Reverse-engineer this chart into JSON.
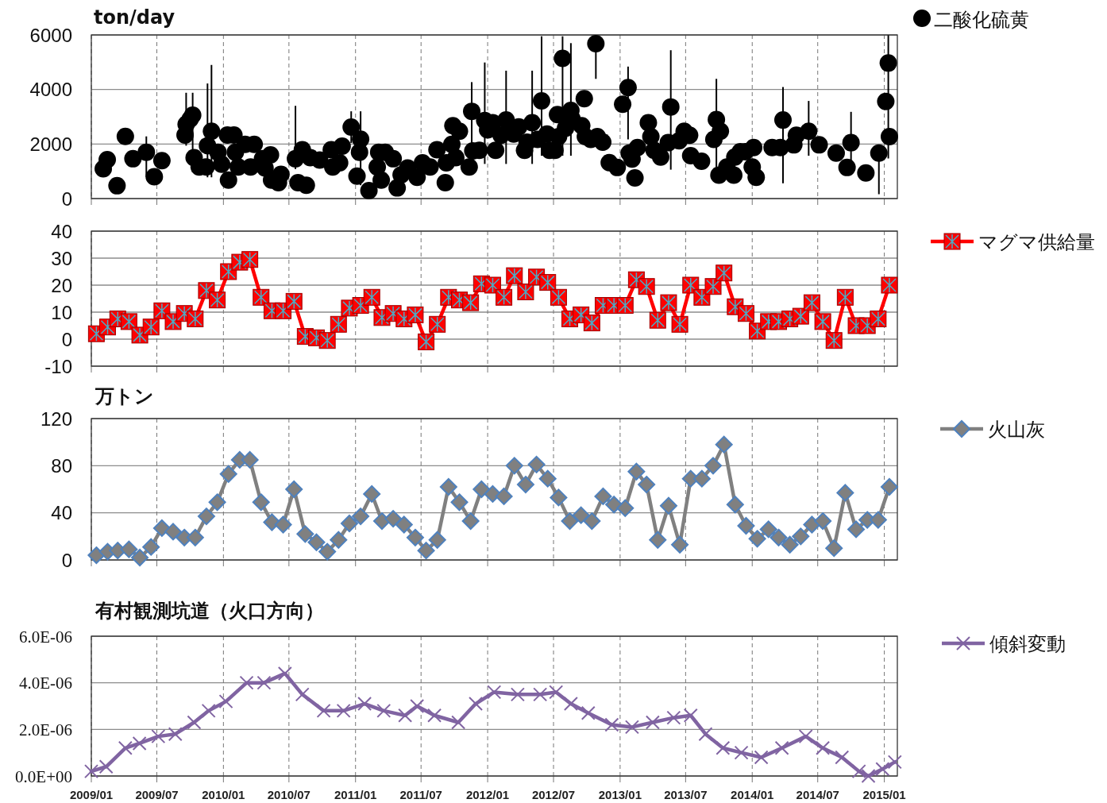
{
  "chart_data": [
    {
      "type": "scatter",
      "ylabel": "ton/day",
      "xlim": [
        "2009-01-01",
        "2015-02-06"
      ],
      "xticks": [
        {
          "value": "2009-01",
          "label": null
        },
        {
          "value": "2009-07",
          "label": null
        },
        {
          "value": "2010-01",
          "label": null
        },
        {
          "value": "2010-07",
          "label": null
        },
        {
          "value": "2011-01",
          "label": null
        },
        {
          "value": "2011-07",
          "label": null
        },
        {
          "value": "2012-01",
          "label": null
        },
        {
          "value": "2012-07",
          "label": null
        },
        {
          "value": "2013-01",
          "label": null
        },
        {
          "value": "2013-07",
          "label": null
        },
        {
          "value": "2014-01",
          "label": null
        },
        {
          "value": "2014-07",
          "label": null
        },
        {
          "value": "2015-01",
          "label": null
        }
      ],
      "ylim": [
        0,
        6000
      ],
      "yticks": [
        0,
        2000,
        4000,
        6000
      ],
      "grid": true,
      "legend": "right",
      "tick_labels": "y",
      "marker": "circle",
      "x": [
        "2009-02-03",
        "2009-02-14",
        "2009-03-13",
        "2009-04-05",
        "2009-04-26",
        "2009-06-02",
        "2009-06-24",
        "2009-07-15",
        "2009-09-17",
        "2009-09-20",
        "2009-10-01",
        "2009-10-08",
        "2009-10-12",
        "2009-10-26",
        "2009-11-14",
        "2009-11-18",
        "2009-11-29",
        "2009-12-17",
        "2009-12-27",
        "2010-01-12",
        "2010-01-15",
        "2010-01-30",
        "2010-02-03",
        "2010-02-11",
        "2010-03-02",
        "2010-03-17",
        "2010-03-27",
        "2010-04-19",
        "2010-04-26",
        "2010-05-11",
        "2010-05-14",
        "2010-06-02",
        "2010-06-09",
        "2010-07-19",
        "2010-07-26",
        "2010-08-07",
        "2010-08-18",
        "2010-08-29",
        "2010-09-24",
        "2010-10-26",
        "2010-10-30",
        "2010-11-18",
        "2010-11-25",
        "2010-12-20",
        "2011-01-05",
        "2011-01-12",
        "2011-01-15",
        "2011-02-07",
        "2011-03-02",
        "2011-03-06",
        "2011-03-13",
        "2011-03-24",
        "2011-04-15",
        "2011-04-26",
        "2011-05-07",
        "2011-05-25",
        "2011-06-20",
        "2011-07-05",
        "2011-07-26",
        "2011-08-14",
        "2011-09-06",
        "2011-09-09",
        "2011-09-24",
        "2011-09-27",
        "2011-10-05",
        "2011-10-15",
        "2011-11-11",
        "2011-11-18",
        "2011-11-21",
        "2011-12-09",
        "2011-12-24",
        "2012-01-01",
        "2012-01-15",
        "2012-01-23",
        "2012-02-07",
        "2012-02-21",
        "2012-03-13",
        "2012-03-27",
        "2012-04-12",
        "2012-04-19",
        "2012-05-03",
        "2012-05-18",
        "2012-05-29",
        "2012-06-13",
        "2012-06-20",
        "2012-07-05",
        "2012-07-12",
        "2012-07-15",
        "2012-07-26",
        "2012-08-03",
        "2012-08-18",
        "2012-08-21",
        "2012-09-17",
        "2012-09-24",
        "2012-09-27",
        "2012-10-12",
        "2012-10-26",
        "2012-10-30",
        "2012-11-14",
        "2012-12-02",
        "2012-12-24",
        "2013-01-08",
        "2013-01-23",
        "2013-01-26",
        "2013-02-03",
        "2013-02-11",
        "2013-02-18",
        "2013-03-20",
        "2013-03-27",
        "2013-04-05",
        "2013-04-23",
        "2013-05-14",
        "2013-05-21",
        "2013-06-13",
        "2013-06-27",
        "2013-07-12",
        "2013-07-15",
        "2013-08-14",
        "2013-09-17",
        "2013-09-24",
        "2013-10-01",
        "2013-10-05",
        "2013-10-23",
        "2013-11-11",
        "2013-11-14",
        "2013-11-29",
        "2013-12-13",
        "2014-01-01",
        "2014-01-05",
        "2014-01-12",
        "2014-02-25",
        "2014-03-20",
        "2014-03-27",
        "2014-04-26",
        "2014-05-03",
        "2014-06-06",
        "2014-07-05",
        "2014-08-21",
        "2014-09-20",
        "2014-10-01",
        "2014-11-11",
        "2014-12-17",
        "2015-01-05",
        "2015-01-12",
        "2015-01-15"
      ],
      "series": [
        {
          "name": "二酸化硫黄",
          "color": "#000000",
          "values": [
            1090,
            1430,
            470,
            2280,
            1460,
            1700,
            800,
            1390,
            2330,
            2720,
            2910,
            3060,
            1500,
            1160,
            1160,
            1940,
            2470,
            1700,
            1260,
            2330,
            680,
            2330,
            1700,
            1160,
            1990,
            1160,
            1990,
            1460,
            1120,
            1600,
            680,
            580,
            890,
            1460,
            580,
            1790,
            490,
            1500,
            1410,
            1790,
            1160,
            1310,
            1920,
            2620,
            820,
            1700,
            2180,
            290,
            1160,
            1700,
            680,
            1700,
            1460,
            390,
            870,
            1120,
            780,
            1310,
            1160,
            1790,
            580,
            1310,
            1990,
            2670,
            1500,
            2470,
            1160,
            3200,
            1750,
            1770,
            2860,
            2520,
            2780,
            1770,
            2320,
            2880,
            2370,
            2630,
            1770,
            2070,
            2780,
            2170,
            3580,
            2370,
            1770,
            1770,
            3080,
            2270,
            5140,
            2580,
            3230,
            2930,
            2670,
            3660,
            2270,
            2170,
            5680,
            2270,
            2070,
            1320,
            1140,
            3460,
            4070,
            1670,
            1450,
            760,
            1870,
            2780,
            2270,
            1770,
            1520,
            2050,
            3360,
            2120,
            2470,
            2320,
            1570,
            1370,
            2170,
            2900,
            860,
            2470,
            1160,
            860,
            1520,
            1720,
            1720,
            1160,
            1870,
            780,
            1870,
            1870,
            2880,
            1970,
            2320,
            2470,
            1970,
            1670,
            1140,
            2050,
            940,
            1670,
            3560,
            4970,
            2270
          ],
          "errors": [
            null,
            null,
            null,
            null,
            null,
            [
              790,
              2280
            ],
            null,
            null,
            null,
            [
              1940,
              3880
            ],
            null,
            [
              970,
              3880
            ],
            null,
            null,
            null,
            [
              780,
              4220
            ],
            [
              780,
              4900
            ],
            null,
            null,
            null,
            null,
            null,
            null,
            null,
            null,
            null,
            null,
            null,
            null,
            null,
            null,
            null,
            null,
            [
              1080,
              3400
            ],
            null,
            null,
            null,
            null,
            null,
            null,
            null,
            null,
            null,
            [
              2040,
              3200
            ],
            null,
            null,
            [
              490,
              3200
            ],
            null,
            null,
            null,
            null,
            null,
            null,
            null,
            null,
            null,
            null,
            null,
            null,
            null,
            null,
            null,
            null,
            null,
            null,
            null,
            null,
            [
              970,
              4270
            ],
            null,
            null,
            [
              1270,
              4990
            ],
            null,
            null,
            null,
            null,
            [
              1270,
              4690
            ],
            null,
            null,
            null,
            null,
            [
              1270,
              4690
            ],
            null,
            [
              1570,
              5950
            ],
            null,
            null,
            null,
            null,
            null,
            [
              1570,
              5950
            ],
            null,
            [
              1570,
              5700
            ],
            null,
            null,
            null,
            null,
            null,
            [
              4390,
              5680
            ],
            null,
            null,
            null,
            null,
            null,
            [
              2170,
              4840
            ],
            null,
            null,
            null,
            null,
            null,
            null,
            null,
            null,
            null,
            [
              1060,
              5440
            ],
            null,
            null,
            null,
            null,
            null,
            null,
            [
              1160,
              4390
            ],
            null,
            null,
            null,
            null,
            null,
            null,
            null,
            null,
            null,
            null,
            null,
            null,
            [
              560,
              4090
            ],
            null,
            null,
            [
              1570,
              3580
            ],
            null,
            null,
            null,
            [
              1370,
              3180
            ],
            null,
            [
              160,
              1670
            ],
            null,
            [
              1470,
              5990
            ],
            null
          ]
        }
      ]
    },
    {
      "type": "line",
      "xlim": [
        "2009-01-01",
        "2015-02-06"
      ],
      "xticks": [
        {
          "value": "2009-01",
          "label": null
        },
        {
          "value": "2009-07",
          "label": null
        },
        {
          "value": "2010-01",
          "label": null
        },
        {
          "value": "2010-07",
          "label": null
        },
        {
          "value": "2011-01",
          "label": null
        },
        {
          "value": "2011-07",
          "label": null
        },
        {
          "value": "2012-01",
          "label": null
        },
        {
          "value": "2012-07",
          "label": null
        },
        {
          "value": "2013-01",
          "label": null
        },
        {
          "value": "2013-07",
          "label": null
        },
        {
          "value": "2014-01",
          "label": null
        },
        {
          "value": "2014-07",
          "label": null
        },
        {
          "value": "2015-01",
          "label": null
        }
      ],
      "ylim": [
        -10,
        40
      ],
      "yticks": [
        -10,
        0,
        10,
        20,
        30,
        40
      ],
      "grid": true,
      "legend": "right",
      "tick_labels": "y",
      "marker": "square",
      "x": [
        "2009-01-15",
        "2009-02-15",
        "2009-03-15",
        "2009-04-15",
        "2009-05-15",
        "2009-06-15",
        "2009-07-15",
        "2009-08-15",
        "2009-09-15",
        "2009-10-15",
        "2009-11-15",
        "2009-12-15",
        "2010-01-15",
        "2010-02-15",
        "2010-03-15",
        "2010-04-15",
        "2010-05-15",
        "2010-06-15",
        "2010-07-15",
        "2010-08-15",
        "2010-09-15",
        "2010-10-15",
        "2010-11-15",
        "2010-12-15",
        "2011-01-15",
        "2011-02-15",
        "2011-03-15",
        "2011-04-15",
        "2011-05-15",
        "2011-06-15",
        "2011-07-15",
        "2011-08-15",
        "2011-09-15",
        "2011-10-15",
        "2011-11-15",
        "2011-12-15",
        "2012-01-15",
        "2012-02-15",
        "2012-03-15",
        "2012-04-15",
        "2012-05-15",
        "2012-06-15",
        "2012-07-15",
        "2012-08-15",
        "2012-09-15",
        "2012-10-15",
        "2012-11-15",
        "2012-12-15",
        "2013-01-15",
        "2013-02-15",
        "2013-03-15",
        "2013-04-15",
        "2013-05-15",
        "2013-06-15",
        "2013-07-15",
        "2013-08-15",
        "2013-09-15",
        "2013-10-15",
        "2013-11-15",
        "2013-12-15",
        "2014-01-15",
        "2014-02-15",
        "2014-03-15",
        "2014-04-15",
        "2014-05-15",
        "2014-06-15",
        "2014-07-15",
        "2014-08-15",
        "2014-09-15",
        "2014-10-15",
        "2014-11-15",
        "2014-12-15",
        "2015-01-15"
      ],
      "series": [
        {
          "name": "マグマ供給量",
          "color": "#ff0000",
          "values": [
            2,
            4.5,
            7.5,
            6.5,
            1.5,
            4.5,
            10.5,
            6.5,
            9.5,
            7.5,
            18,
            14.5,
            25,
            28.5,
            29.5,
            15.5,
            10.5,
            10.5,
            14,
            1,
            0.5,
            -0.5,
            5.5,
            11.5,
            12.5,
            15.5,
            8,
            9.5,
            7.5,
            9,
            -1,
            5.5,
            15.5,
            14.5,
            13.5,
            20.5,
            20,
            15.5,
            23.5,
            17.5,
            23,
            21,
            15.5,
            7.5,
            9,
            6,
            12.5,
            12.5,
            12.5,
            22,
            19.5,
            7,
            13.5,
            5.5,
            20,
            15.5,
            19.5,
            24.5,
            12,
            9.5,
            3,
            6.5,
            6.5,
            7.5,
            8.5,
            13.5,
            6.5,
            -0.5,
            15.5,
            5,
            5,
            7.5,
            20
          ]
        }
      ]
    },
    {
      "type": "line",
      "ylabel": "万トン",
      "xlim": [
        "2009-01-01",
        "2015-02-06"
      ],
      "xticks": [
        {
          "value": "2009-01",
          "label": null
        },
        {
          "value": "2009-07",
          "label": null
        },
        {
          "value": "2010-01",
          "label": null
        },
        {
          "value": "2010-07",
          "label": null
        },
        {
          "value": "2011-01",
          "label": null
        },
        {
          "value": "2011-07",
          "label": null
        },
        {
          "value": "2012-01",
          "label": null
        },
        {
          "value": "2012-07",
          "label": null
        },
        {
          "value": "2013-01",
          "label": null
        },
        {
          "value": "2013-07",
          "label": null
        },
        {
          "value": "2014-01",
          "label": null
        },
        {
          "value": "2014-07",
          "label": null
        },
        {
          "value": "2015-01",
          "label": null
        }
      ],
      "ylim": [
        0,
        120
      ],
      "yticks": [
        0,
        40,
        80,
        120
      ],
      "grid": true,
      "legend": "right",
      "tick_labels": "y",
      "marker": "diamond",
      "x": [
        "2009-01-15",
        "2009-02-15",
        "2009-03-15",
        "2009-04-15",
        "2009-05-15",
        "2009-06-15",
        "2009-07-15",
        "2009-08-15",
        "2009-09-15",
        "2009-10-15",
        "2009-11-15",
        "2009-12-15",
        "2010-01-15",
        "2010-02-15",
        "2010-03-15",
        "2010-04-15",
        "2010-05-15",
        "2010-06-15",
        "2010-07-15",
        "2010-08-15",
        "2010-09-15",
        "2010-10-15",
        "2010-11-15",
        "2010-12-15",
        "2011-01-15",
        "2011-02-15",
        "2011-03-15",
        "2011-04-15",
        "2011-05-15",
        "2011-06-15",
        "2011-07-15",
        "2011-08-15",
        "2011-09-15",
        "2011-10-15",
        "2011-11-15",
        "2011-12-15",
        "2012-01-15",
        "2012-02-15",
        "2012-03-15",
        "2012-04-15",
        "2012-05-15",
        "2012-06-15",
        "2012-07-15",
        "2012-08-15",
        "2012-09-15",
        "2012-10-15",
        "2012-11-15",
        "2012-12-15",
        "2013-01-15",
        "2013-02-15",
        "2013-03-15",
        "2013-04-15",
        "2013-05-15",
        "2013-06-15",
        "2013-07-15",
        "2013-08-15",
        "2013-09-15",
        "2013-10-15",
        "2013-11-15",
        "2013-12-15",
        "2014-01-15",
        "2014-02-15",
        "2014-03-15",
        "2014-04-15",
        "2014-05-15",
        "2014-06-15",
        "2014-07-15",
        "2014-08-15",
        "2014-09-15",
        "2014-10-15",
        "2014-11-15",
        "2014-12-15",
        "2015-01-15"
      ],
      "series": [
        {
          "name": "火山灰",
          "color": "#808080",
          "values": [
            4,
            7,
            8,
            9,
            2,
            11,
            27,
            24,
            19,
            19,
            37,
            49,
            73,
            85,
            85,
            49,
            32,
            30,
            60,
            22,
            15,
            7,
            17,
            31,
            37,
            56,
            33,
            35,
            30,
            19,
            8,
            17,
            62,
            49,
            33,
            60,
            56,
            54,
            80,
            64,
            81,
            69,
            53,
            33,
            38,
            33,
            54,
            47,
            44,
            75,
            64,
            17,
            46,
            13,
            69,
            69,
            80,
            98,
            47,
            29,
            18,
            26,
            19,
            13,
            20,
            30,
            33,
            10,
            57,
            26,
            34,
            34,
            62
          ]
        }
      ]
    },
    {
      "type": "line",
      "title": "有村観測坑道（火口方向）",
      "xlim": [
        "2009-01-01",
        "2015-02-06"
      ],
      "xticks": [
        {
          "value": "2009-01",
          "label": "2009/01"
        },
        {
          "value": "2009-07",
          "label": "2009/07"
        },
        {
          "value": "2010-01",
          "label": "2010/01"
        },
        {
          "value": "2010-07",
          "label": "2010/07"
        },
        {
          "value": "2011-01",
          "label": "2011/01"
        },
        {
          "value": "2011-07",
          "label": "2011/07"
        },
        {
          "value": "2012-01",
          "label": "2012/01"
        },
        {
          "value": "2012-07",
          "label": "2012/07"
        },
        {
          "value": "2013-01",
          "label": "2013/01"
        },
        {
          "value": "2013-07",
          "label": "2013/07"
        },
        {
          "value": "2014-01",
          "label": "2014/01"
        },
        {
          "value": "2014-07",
          "label": "2014/07"
        },
        {
          "value": "2015-01",
          "label": "2015/01"
        }
      ],
      "ylim": [
        0,
        6e-06
      ],
      "yticks": [
        {
          "value": 0,
          "label": "0.0E+00"
        },
        {
          "value": 2e-06,
          "label": "2.0E-06"
        },
        {
          "value": 4e-06,
          "label": "4.0E-06"
        },
        {
          "value": 6e-06,
          "label": "6.0E-06"
        }
      ],
      "grid": true,
      "legend": "right",
      "marker": "cross",
      "x": [
        "2009-01-01",
        "2009-02-11",
        "2009-04-05",
        "2009-05-14",
        "2009-07-05",
        "2009-08-21",
        "2009-10-12",
        "2009-11-21",
        "2010-01-08",
        "2010-03-06",
        "2010-04-23",
        "2010-06-20",
        "2010-08-07",
        "2010-10-05",
        "2010-11-29",
        "2011-01-26",
        "2011-03-20",
        "2011-05-18",
        "2011-06-20",
        "2011-08-07",
        "2011-10-12",
        "2011-11-29",
        "2012-01-19",
        "2012-03-24",
        "2012-05-25",
        "2012-07-08",
        "2012-08-18",
        "2012-10-05",
        "2012-12-09",
        "2013-02-03",
        "2013-04-01",
        "2013-05-29",
        "2013-07-15",
        "2013-08-25",
        "2013-10-12",
        "2013-12-02",
        "2014-01-26",
        "2014-03-24",
        "2014-05-29",
        "2014-07-15",
        "2014-09-06",
        "2014-10-23",
        "2014-11-18",
        "2014-12-27",
        "2015-01-30"
      ],
      "series": [
        {
          "name": "傾斜変動",
          "color": "#8064a2",
          "values": [
            2e-07,
            4e-07,
            1.2e-06,
            1.4e-06,
            1.7e-06,
            1.8e-06,
            2.3e-06,
            2.8e-06,
            3.2e-06,
            4e-06,
            4e-06,
            4.4e-06,
            3.5e-06,
            2.8e-06,
            2.8e-06,
            3.1e-06,
            2.8e-06,
            2.6e-06,
            3e-06,
            2.6e-06,
            2.3e-06,
            3.1e-06,
            3.6e-06,
            3.5e-06,
            3.5e-06,
            3.6e-06,
            3.1e-06,
            2.7e-06,
            2.2e-06,
            2.1e-06,
            2.3e-06,
            2.5e-06,
            2.6e-06,
            1.8e-06,
            1.2e-06,
            1e-06,
            8e-07,
            1.2e-06,
            1.7e-06,
            1.2e-06,
            8e-07,
            2e-07,
            0,
            3e-07,
            6e-07
          ]
        }
      ]
    }
  ]
}
